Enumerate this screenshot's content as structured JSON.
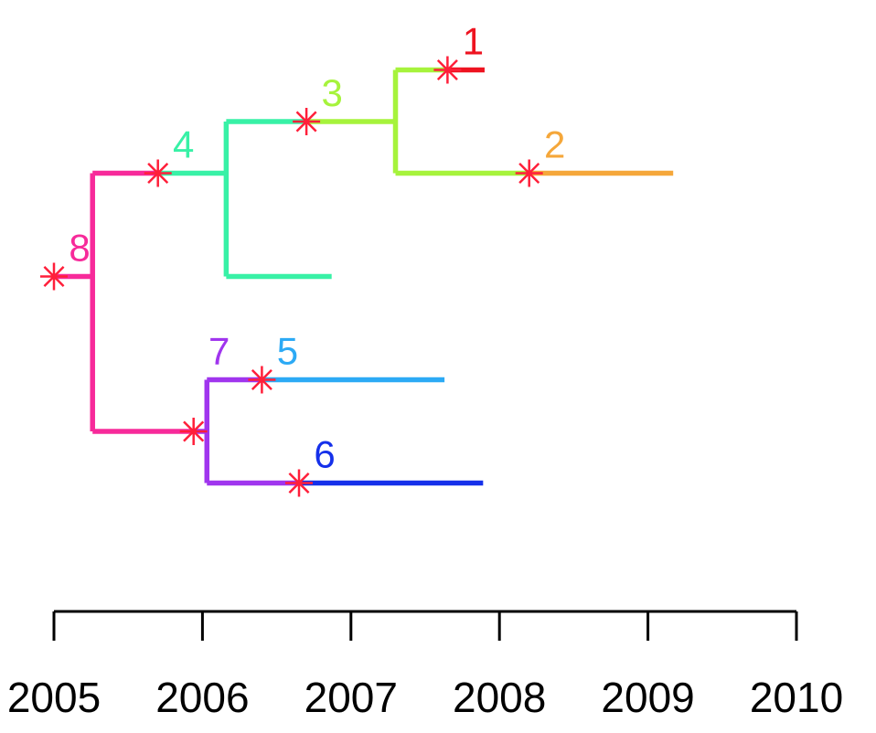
{
  "chart_data": {
    "type": "tree",
    "title": "",
    "xlabel": "",
    "ylabel": "",
    "xlim": [
      2005,
      2010
    ],
    "x_ticks": [
      2005,
      2006,
      2007,
      2008,
      2009,
      2010
    ],
    "x_tick_labels": [
      "2005",
      "2006",
      "2007",
      "2008",
      "2009",
      "2010"
    ],
    "marker_color": "#ff1f3a",
    "lineages": [
      {
        "label": "1",
        "color": "#ee1320"
      },
      {
        "label": "2",
        "color": "#f5a73a"
      },
      {
        "label": "3",
        "color": "#a6f33c"
      },
      {
        "label": "4",
        "color": "#38f1a6"
      },
      {
        "label": "5",
        "color": "#2caaf5"
      },
      {
        "label": "6",
        "color": "#1530ea"
      },
      {
        "label": "7",
        "color": "#a035ee"
      },
      {
        "label": "8",
        "color": "#f72a9a"
      }
    ],
    "branches": [
      {
        "color": "#f72a9a",
        "x0": 2005.0,
        "x1": 2005.26,
        "leaf": 3
      },
      {
        "color": "#f72a9a",
        "x0": 2005.26,
        "x1": 2005.7,
        "leaf": 1
      },
      {
        "color": "#38f1a6",
        "x0": 2005.7,
        "x1": 2006.16,
        "leaf": 1
      },
      {
        "color": "#38f1a6",
        "x0": 2006.16,
        "x1": 2006.7,
        "leaf": 0
      },
      {
        "color": "#a6f33c",
        "x0": 2006.7,
        "x1": 2007.3,
        "leaf": 0
      },
      {
        "color": "#a6f33c",
        "x0": 2007.3,
        "x1": 2007.65,
        "leaf": -1
      },
      {
        "color": "#ee1320",
        "x0": 2007.65,
        "x1": 2007.9,
        "leaf": -1
      },
      {
        "color": "#a6f33c",
        "x0": 2007.3,
        "x1": 2008.2,
        "leaf": 1
      },
      {
        "color": "#f5a73a",
        "x0": 2008.2,
        "x1": 2009.17,
        "leaf": 1
      },
      {
        "color": "#38f1a6",
        "x0": 2006.16,
        "x1": 2006.87,
        "leaf": 3
      },
      {
        "color": "#f72a9a",
        "x0": 2005.26,
        "x1": 2005.94,
        "leaf": 6
      },
      {
        "color": "#a035ee",
        "x0": 2005.94,
        "x1": 2006.03,
        "leaf": 6
      },
      {
        "color": "#a035ee",
        "x0": 2006.03,
        "x1": 2006.4,
        "leaf": 5
      },
      {
        "color": "#2caaf5",
        "x0": 2006.4,
        "x1": 2007.63,
        "leaf": 5
      },
      {
        "color": "#a035ee",
        "x0": 2006.03,
        "x1": 2006.65,
        "leaf": 7
      },
      {
        "color": "#1530ea",
        "x0": 2006.65,
        "x1": 2007.89,
        "leaf": 7
      }
    ],
    "connectors": [
      {
        "color": "#f72a9a",
        "x": 2005.26,
        "leaf0": 1,
        "leaf1": 6
      },
      {
        "color": "#38f1a6",
        "x": 2006.16,
        "leaf0": 0,
        "leaf1": 3
      },
      {
        "color": "#a6f33c",
        "x": 2007.3,
        "leaf0": -1,
        "leaf1": 1
      },
      {
        "color": "#a035ee",
        "x": 2006.03,
        "leaf0": 5,
        "leaf1": 7
      }
    ],
    "markers": [
      {
        "label": "8",
        "x": 2005.0,
        "leaf": 3,
        "label_dx": 0.15,
        "label_dy": -0.55
      },
      {
        "label": "4",
        "x": 2005.7,
        "leaf": 1,
        "label_dx": 0.15,
        "label_dy": -0.55
      },
      {
        "label": "3",
        "x": 2006.7,
        "leaf": 0,
        "label_dx": 0.15,
        "label_dy": -0.55
      },
      {
        "label": "1",
        "x": 2007.65,
        "leaf": -1,
        "label_dx": 0.15,
        "label_dy": -0.55
      },
      {
        "label": "2",
        "x": 2008.2,
        "leaf": 1,
        "label_dx": 0.15,
        "label_dy": -0.55
      },
      {
        "label": "7",
        "x": 2005.94,
        "leaf": 6,
        "label_dx": 0.15,
        "label_dy": -1.55
      },
      {
        "label": "5",
        "x": 2006.4,
        "leaf": 5,
        "label_dx": 0.15,
        "label_dy": -0.55
      },
      {
        "label": "6",
        "x": 2006.65,
        "leaf": 7,
        "label_dx": 0.15,
        "label_dy": -0.55
      }
    ]
  }
}
